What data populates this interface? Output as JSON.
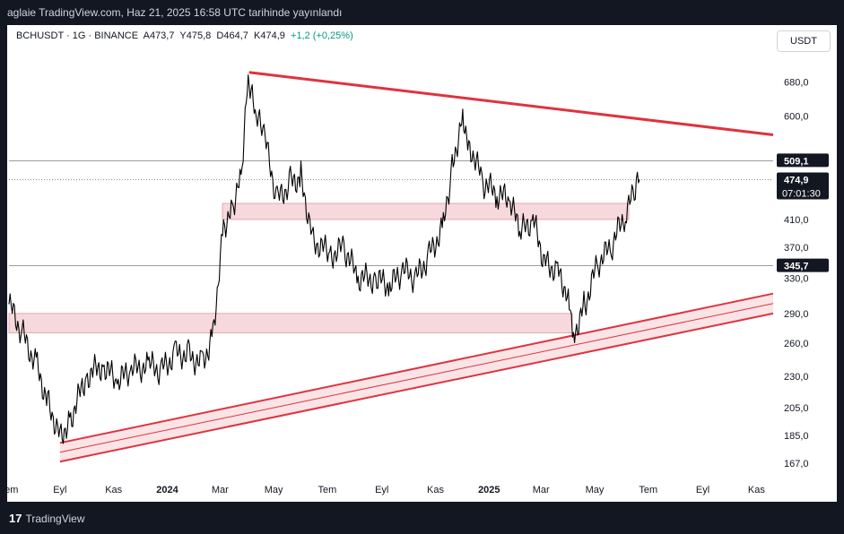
{
  "header": {
    "publish_line": "aglaie TradingView.com, Haz 21, 2025 16:58 UTC tarihinde yayınlandı"
  },
  "legend": {
    "symbol": "BCHUSDT · 1G · BINANCE",
    "open": "A473,7",
    "high": "Y475,8",
    "low": "D464,7",
    "close": "K474,9",
    "change": "+1,2 (+0,25%)"
  },
  "currency_button": "USDT",
  "footer": {
    "brand_mark": "17",
    "brand_name": "TradingView"
  },
  "colors": {
    "background": "#ffffff",
    "frame": "#131722",
    "candle": "#000000",
    "trendline": "#e0323f",
    "zone_fill": "#f6d9dc",
    "label_bg": "#131722"
  },
  "chart_data": {
    "type": "line",
    "title": "",
    "log_scale": true,
    "ylim": [
      160,
      760
    ],
    "x_date_range": [
      "2023-07-05",
      "2025-11-20"
    ],
    "y_ticks": [
      "167,0",
      "185,0",
      "205,0",
      "230,0",
      "260,0",
      "290,0",
      "330,0",
      "370,0",
      "410,0",
      "600,0",
      "680,0"
    ],
    "x_ticks": [
      {
        "date": "2023-07-05",
        "label": "Tem"
      },
      {
        "date": "2023-09-01",
        "label": "Eyl"
      },
      {
        "date": "2023-11-01",
        "label": "Kas"
      },
      {
        "date": "2024-01-01",
        "label": "2024"
      },
      {
        "date": "2024-03-01",
        "label": "Mar"
      },
      {
        "date": "2024-05-01",
        "label": "May"
      },
      {
        "date": "2024-07-01",
        "label": "Tem"
      },
      {
        "date": "2024-09-01",
        "label": "Eyl"
      },
      {
        "date": "2024-11-01",
        "label": "Kas"
      },
      {
        "date": "2025-01-01",
        "label": "2025"
      },
      {
        "date": "2025-03-01",
        "label": "Mar"
      },
      {
        "date": "2025-05-01",
        "label": "May"
      },
      {
        "date": "2025-07-01",
        "label": "Tem"
      },
      {
        "date": "2025-09-01",
        "label": "Eyl"
      },
      {
        "date": "2025-11-01",
        "label": "Kas"
      }
    ],
    "series": [
      {
        "x": [
          "2023-07-05",
          "2023-07-20",
          "2023-08-05",
          "2023-08-18",
          "2023-09-01",
          "2023-09-12",
          "2023-10-01",
          "2023-10-20",
          "2023-11-05",
          "2023-11-20",
          "2023-12-10",
          "2023-12-25",
          "2024-01-10",
          "2024-01-25",
          "2024-02-10",
          "2024-02-22",
          "2024-03-05",
          "2024-03-15",
          "2024-03-25",
          "2024-04-02",
          "2024-04-10",
          "2024-04-20",
          "2024-05-05",
          "2024-05-20",
          "2024-06-01",
          "2024-06-15",
          "2024-07-05",
          "2024-07-20",
          "2024-08-05",
          "2024-08-25",
          "2024-09-10",
          "2024-09-25",
          "2024-10-10",
          "2024-10-25",
          "2024-11-10",
          "2024-11-20",
          "2024-12-02",
          "2024-12-10",
          "2024-12-25",
          "2025-01-10",
          "2025-01-25",
          "2025-02-05",
          "2025-02-20",
          "2025-03-05",
          "2025-03-20",
          "2025-04-01",
          "2025-04-07",
          "2025-04-20",
          "2025-05-05",
          "2025-05-20",
          "2025-06-05",
          "2025-06-15",
          "2025-06-21"
        ],
        "values": [
          300,
          270,
          240,
          210,
          185,
          195,
          230,
          240,
          225,
          235,
          240,
          235,
          250,
          250,
          240,
          270,
          400,
          430,
          480,
          690,
          600,
          560,
          440,
          470,
          480,
          380,
          360,
          370,
          330,
          330,
          320,
          340,
          330,
          360,
          400,
          500,
          600,
          540,
          470,
          450,
          440,
          390,
          410,
          350,
          340,
          310,
          268,
          300,
          350,
          370,
          420,
          450,
          474.9
        ]
      }
    ],
    "price_labels": [
      {
        "value": 509.1,
        "text": "509,1"
      },
      {
        "value": 474.9,
        "text": "474,9",
        "sub": "07:01:30"
      },
      {
        "value": 345.7,
        "text": "345,7"
      }
    ],
    "horizontal_zones": [
      {
        "from": 410,
        "to": 435
      },
      {
        "from": 270,
        "to": 290
      }
    ],
    "trendlines": [
      {
        "from": [
          "2024-04-03",
          705
        ],
        "to": [
          "2025-11-20",
          560
        ],
        "style": "single"
      },
      {
        "from": [
          "2023-09-01",
          180
        ],
        "to": [
          "2025-11-20",
          312
        ],
        "style": "channel-top"
      },
      {
        "from": [
          "2023-09-01",
          168
        ],
        "to": [
          "2025-11-20",
          290
        ],
        "style": "channel-bottom"
      }
    ]
  }
}
